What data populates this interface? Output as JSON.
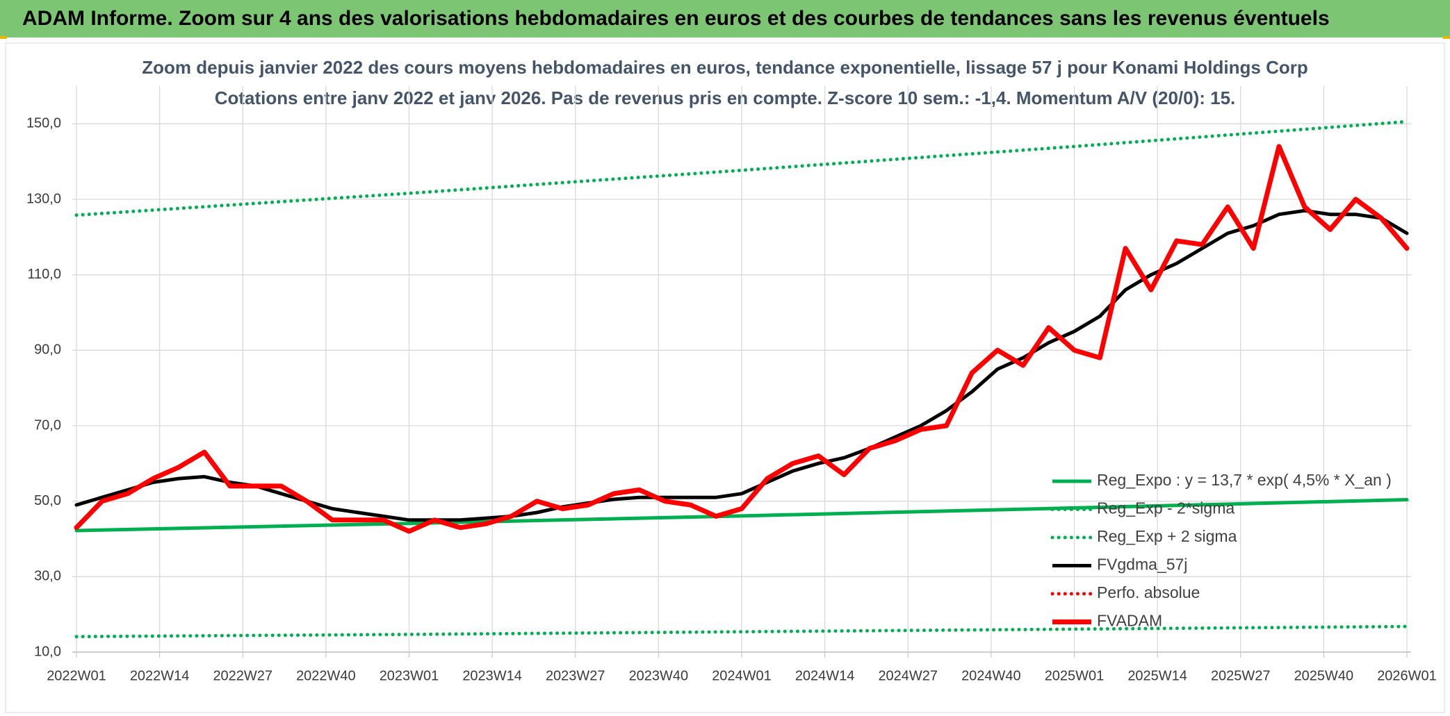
{
  "chart_data": {
    "type": "line",
    "title": "ADAM Informe. Zoom sur 4 ans des valorisations hebdomadaires en euros et des courbes de tendances sans les revenus éventuels",
    "subtitle": [
      "Zoom depuis janvier 2022 des cours moyens hebdomadaires en euros, tendance exponentielle, lissage 57 j pour Konami Holdings Corp",
      "Cotations entre janv 2022 et janv 2026. Pas de revenus pris en compte. Z-score 10 sem.: -1,4. Momentum A/V (20/0): 15."
    ],
    "x": [
      0,
      4,
      8,
      12,
      16,
      20,
      24,
      28,
      32,
      36,
      40,
      44,
      48,
      52,
      56,
      60,
      64,
      68,
      72,
      76,
      80,
      84,
      88,
      92,
      96,
      100,
      104,
      108,
      112,
      116,
      120,
      124,
      128,
      132,
      136,
      140,
      144,
      148,
      152,
      156,
      160,
      164,
      168,
      172,
      176,
      180,
      184,
      188,
      192,
      196,
      200,
      204,
      208
    ],
    "xlim": [
      0,
      208
    ],
    "xticks": [
      {
        "value": 0,
        "label": "2022W01"
      },
      {
        "value": 13,
        "label": "2022W14"
      },
      {
        "value": 26,
        "label": "2022W27"
      },
      {
        "value": 39,
        "label": "2022W40"
      },
      {
        "value": 52,
        "label": "2023W01"
      },
      {
        "value": 65,
        "label": "2023W14"
      },
      {
        "value": 78,
        "label": "2023W27"
      },
      {
        "value": 91,
        "label": "2023W40"
      },
      {
        "value": 104,
        "label": "2024W01"
      },
      {
        "value": 117,
        "label": "2024W14"
      },
      {
        "value": 130,
        "label": "2024W27"
      },
      {
        "value": 143,
        "label": "2024W40"
      },
      {
        "value": 156,
        "label": "2025W01"
      },
      {
        "value": 169,
        "label": "2025W14"
      },
      {
        "value": 182,
        "label": "2025W27"
      },
      {
        "value": 195,
        "label": "2025W40"
      },
      {
        "value": 208,
        "label": "2026W01"
      }
    ],
    "ylim": [
      10,
      160
    ],
    "yticks": [
      {
        "value": 10,
        "label": "10,0"
      },
      {
        "value": 30,
        "label": "30,0"
      },
      {
        "value": 50,
        "label": "50,0"
      },
      {
        "value": 70,
        "label": "70,0"
      },
      {
        "value": 90,
        "label": "90,0"
      },
      {
        "value": 110,
        "label": "110,0"
      },
      {
        "value": 130,
        "label": "130,0"
      },
      {
        "value": 150,
        "label": "150,0"
      }
    ],
    "grid": true,
    "legend": "lower-right",
    "series": [
      {
        "name": "Reg_Expo : y = 13,7 * exp( 4,5% *  X_an )",
        "color": "#00b050",
        "style": "solid",
        "x": [
          0,
          52,
          104,
          156,
          208
        ],
        "values": [
          42.2,
          44.1,
          46.1,
          48.2,
          50.4
        ]
      },
      {
        "name": "Reg_Exp - 2*sigma",
        "color": "#00b050",
        "style": "dotted",
        "x": [
          0,
          52,
          104,
          156,
          208
        ],
        "values": [
          14.1,
          14.7,
          15.4,
          16.1,
          16.8
        ]
      },
      {
        "name": "Reg_Exp + 2 sigma",
        "color": "#00b050",
        "style": "dotted",
        "x": [
          0,
          52,
          104,
          156,
          208
        ],
        "values": [
          125.8,
          131.6,
          137.7,
          144.0,
          150.6
        ]
      },
      {
        "name": "FVgdma_57j",
        "color": "#000000",
        "style": "solid",
        "values": [
          49,
          51,
          53,
          55,
          56,
          56.5,
          55,
          54,
          52,
          50,
          48,
          47,
          46,
          45,
          45,
          45,
          45.5,
          46,
          47,
          48.5,
          49.5,
          50.5,
          51,
          51,
          51,
          51,
          52,
          55,
          58,
          60,
          61.5,
          64,
          67,
          70,
          74,
          79,
          85,
          88,
          92,
          95,
          99,
          106,
          110,
          113,
          117,
          121,
          123,
          126,
          127,
          126,
          126,
          125,
          121
        ]
      },
      {
        "name": "Perfo. absolue",
        "color": "#ff0000",
        "style": "dotted",
        "values": [
          43,
          50,
          52,
          56,
          59,
          63,
          54,
          54,
          54,
          50,
          45,
          45,
          45,
          42,
          45,
          43,
          44,
          46,
          50,
          48,
          49,
          52,
          53,
          50,
          49,
          46,
          48,
          56,
          60,
          62,
          57,
          64,
          66,
          69,
          70,
          84,
          90,
          86,
          96,
          90,
          88,
          117,
          106,
          119,
          118,
          128,
          117,
          144,
          128,
          122,
          130,
          125,
          117
        ]
      },
      {
        "name": "FVADAM",
        "color": "#ff0000",
        "style": "thick",
        "values": [
          43,
          50,
          52,
          56,
          59,
          63,
          54,
          54,
          54,
          50,
          45,
          45,
          45,
          42,
          45,
          43,
          44,
          46,
          50,
          48,
          49,
          52,
          53,
          50,
          49,
          46,
          48,
          56,
          60,
          62,
          57,
          64,
          66,
          69,
          70,
          84,
          90,
          86,
          96,
          90,
          88,
          117,
          106,
          119,
          118,
          128,
          117,
          144,
          128,
          122,
          130,
          125,
          117
        ]
      }
    ]
  }
}
